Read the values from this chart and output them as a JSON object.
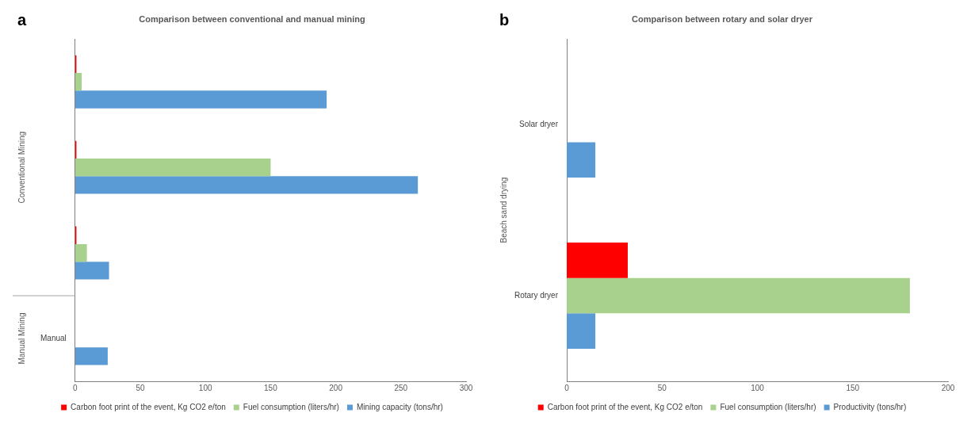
{
  "chart_data": [
    {
      "type": "bar",
      "orientation": "horizontal",
      "title": "Comparison between conventional and manual mining",
      "annotations": [
        "a",
        "Conventional Mining",
        "Manual Mining"
      ],
      "categories": [
        null,
        null,
        null,
        "Manual"
      ],
      "series": [
        {
          "name": "Carbon foot print of the event, Kg CO2 e/ton",
          "color": "#ff0000",
          "values": [
            1,
            1,
            1,
            0
          ]
        },
        {
          "name": "Fuel consumption (liters/hr)",
          "color": "#a9d18e",
          "values": [
            5,
            150,
            9,
            0
          ]
        },
        {
          "name": "Mining capacity (tons/hr)",
          "color": "#5b9bd5",
          "values": [
            193,
            263,
            26,
            25
          ]
        }
      ],
      "xlim": [
        0,
        300
      ],
      "xticks": [
        0,
        50,
        100,
        150,
        200,
        250,
        300
      ],
      "grid": false,
      "legend": "bottom"
    },
    {
      "type": "bar",
      "orientation": "horizontal",
      "title": "Comparison between rotary and solar dryer",
      "ylabel": "Beach sand drying",
      "annotations": [
        "b"
      ],
      "categories": [
        "Solar dryer",
        "Rotary dryer"
      ],
      "series": [
        {
          "name": "Carbon foot print of the event, Kg CO2 e/ton",
          "color": "#ff0000",
          "values": [
            0,
            32
          ]
        },
        {
          "name": "Fuel consumption (liters/hr)",
          "color": "#a9d18e",
          "values": [
            0,
            180
          ]
        },
        {
          "name": "Productivity (tons/hr)",
          "color": "#5b9bd5",
          "values": [
            15,
            15
          ]
        }
      ],
      "xlim": [
        0,
        200
      ],
      "xticks": [
        0,
        50,
        100,
        150,
        200
      ],
      "grid": false,
      "legend": "bottom"
    }
  ]
}
